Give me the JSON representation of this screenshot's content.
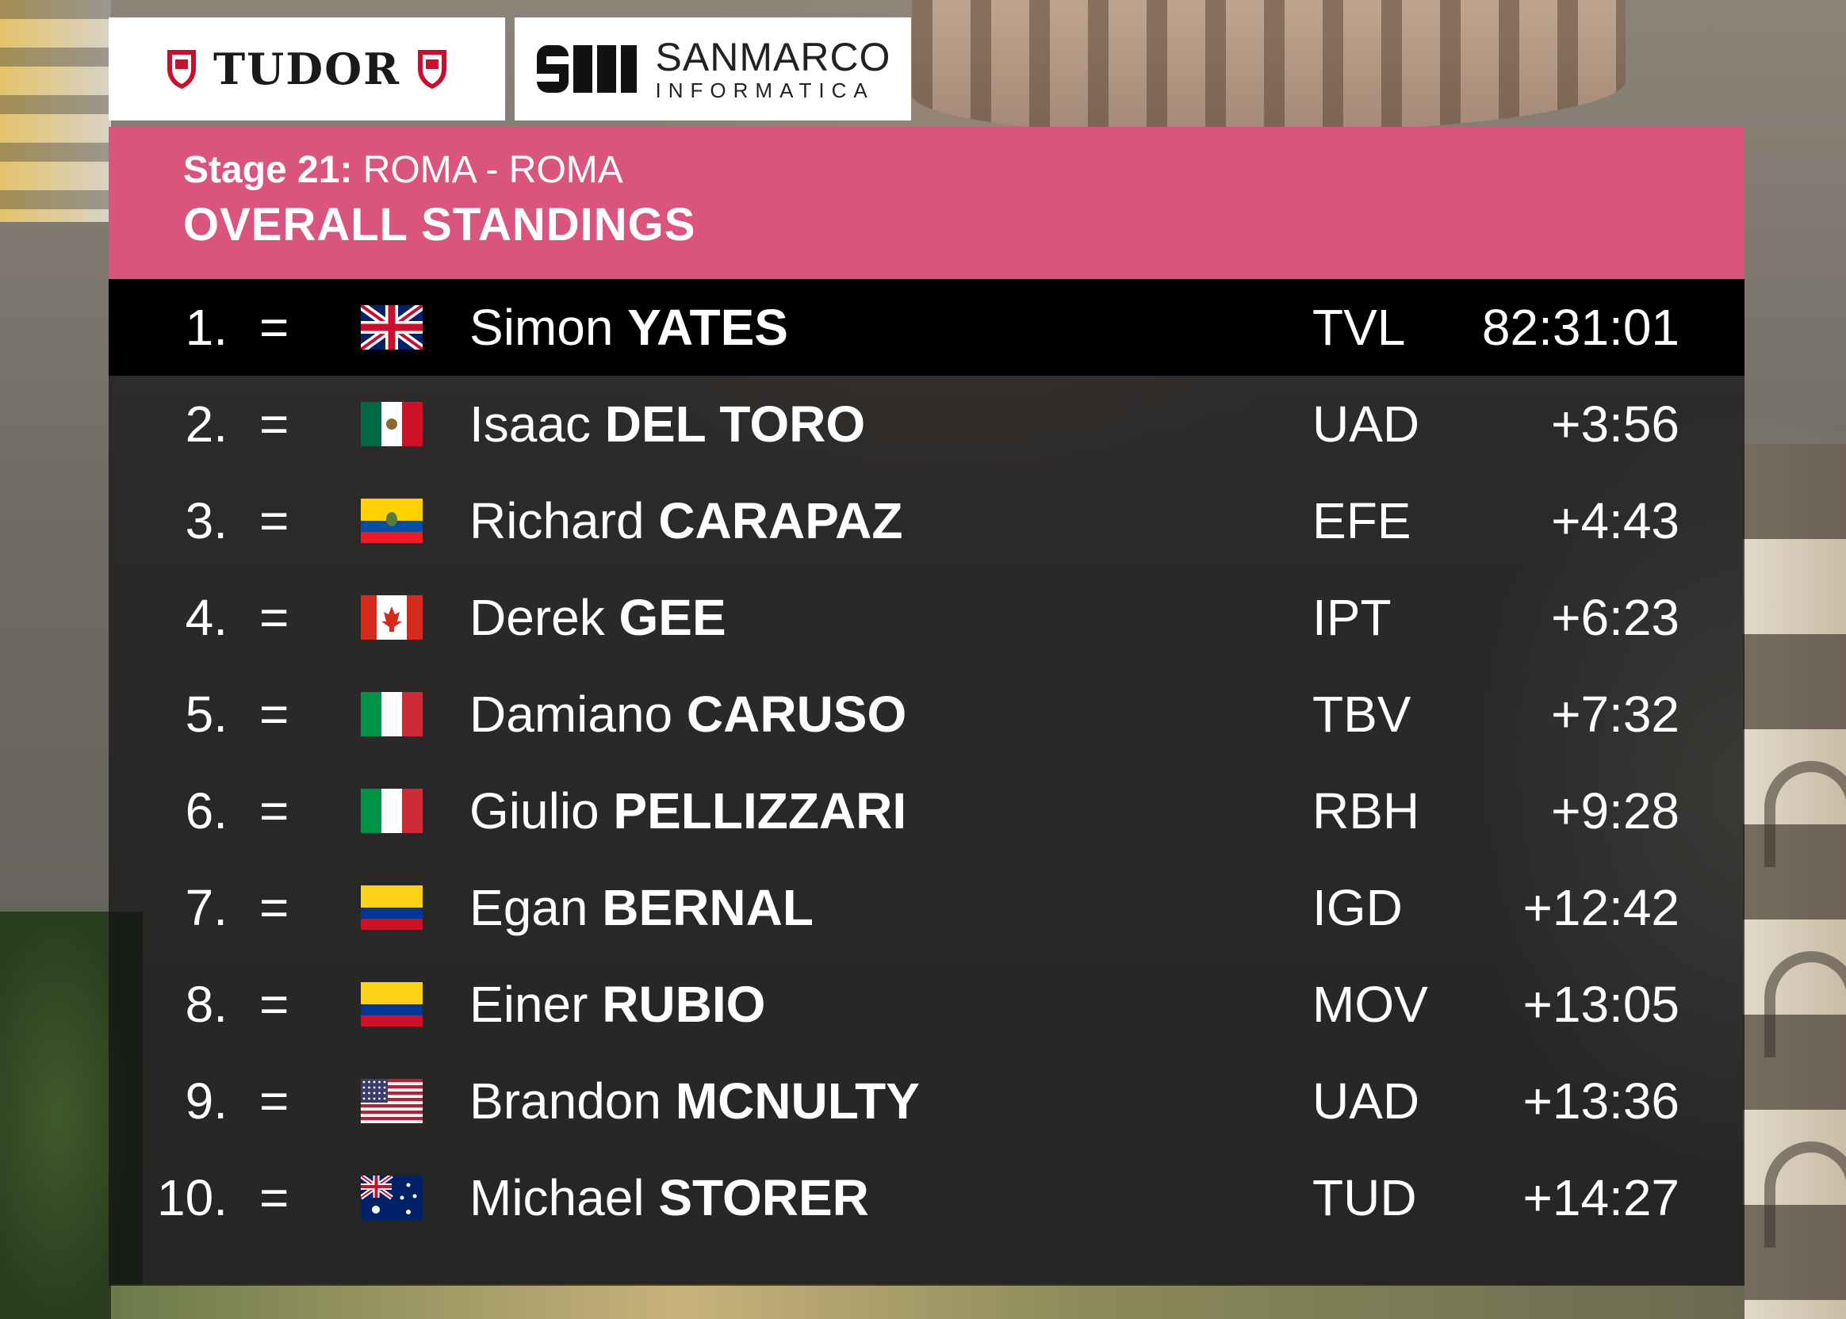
{
  "sponsors": {
    "tudor": {
      "name": "TUDOR",
      "icon": "tudor-shield-icon",
      "color": "#c8102e"
    },
    "sanmarco": {
      "line1": "SANMARCO",
      "line2": "INFORMATICA",
      "icon": "sanmarco-logo-icon"
    }
  },
  "header": {
    "stage_number": "Stage 21:",
    "stage_route": "ROMA - ROMA",
    "title": "OVERALL STANDINGS",
    "color": "#d9557e"
  },
  "standings": [
    {
      "rank": "1.",
      "movement": "=",
      "flag": "gb-flag-icon",
      "first_name": "Simon",
      "last_name": "YATES",
      "team": "TVL",
      "time": "82:31:01"
    },
    {
      "rank": "2.",
      "movement": "=",
      "flag": "mx-flag-icon",
      "first_name": "Isaac",
      "last_name": "DEL TORO",
      "team": "UAD",
      "time": "+3:56"
    },
    {
      "rank": "3.",
      "movement": "=",
      "flag": "ec-flag-icon",
      "first_name": "Richard",
      "last_name": "CARAPAZ",
      "team": "EFE",
      "time": "+4:43"
    },
    {
      "rank": "4.",
      "movement": "=",
      "flag": "ca-flag-icon",
      "first_name": "Derek",
      "last_name": "GEE",
      "team": "IPT",
      "time": "+6:23"
    },
    {
      "rank": "5.",
      "movement": "=",
      "flag": "it-flag-icon",
      "first_name": "Damiano",
      "last_name": "CARUSO",
      "team": "TBV",
      "time": "+7:32"
    },
    {
      "rank": "6.",
      "movement": "=",
      "flag": "it-flag-icon",
      "first_name": "Giulio",
      "last_name": "PELLIZZARI",
      "team": "RBH",
      "time": "+9:28"
    },
    {
      "rank": "7.",
      "movement": "=",
      "flag": "co-flag-icon",
      "first_name": "Egan",
      "last_name": "BERNAL",
      "team": "IGD",
      "time": "+12:42"
    },
    {
      "rank": "8.",
      "movement": "=",
      "flag": "co-flag-icon",
      "first_name": "Einer",
      "last_name": "RUBIO",
      "team": "MOV",
      "time": "+13:05"
    },
    {
      "rank": "9.",
      "movement": "=",
      "flag": "us-flag-icon",
      "first_name": "Brandon",
      "last_name": "MCNULTY",
      "team": "UAD",
      "time": "+13:36"
    },
    {
      "rank": "10.",
      "movement": "=",
      "flag": "au-flag-icon",
      "first_name": "Michael",
      "last_name": "STORER",
      "team": "TUD",
      "time": "+14:27"
    }
  ]
}
